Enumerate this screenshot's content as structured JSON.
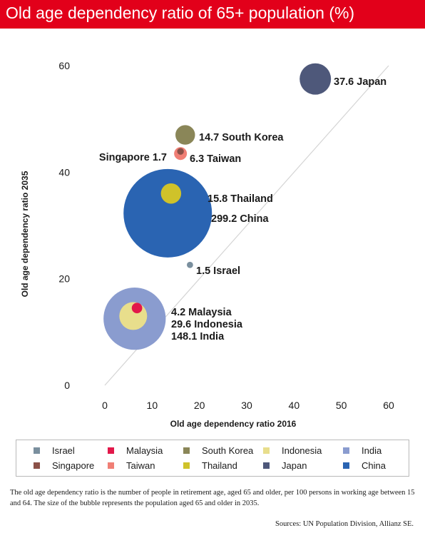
{
  "title": "Old age dependency ratio of 65+ population (%)",
  "note": "The old age dependency ratio is the number of people in retirement age, aged 65 and older, per 100 persons in working age between 15 and 64. The size of the bubble represents the population aged 65 and older in 2035.",
  "source": "Sources: UN Population Division, Allianz SE.",
  "chart_data": {
    "type": "scatter",
    "title": "Old age dependency ratio of 65+ population (%)",
    "xlabel": "Old age dependency ratio 2016",
    "ylabel": "Old age dependency ratio 2035",
    "xlim": [
      0,
      60
    ],
    "ylim": [
      0,
      60
    ],
    "xticks": [
      "0",
      "10",
      "20",
      "30",
      "40",
      "50",
      "60"
    ],
    "yticks": [
      "0",
      "20",
      "40",
      "60"
    ],
    "grid": false,
    "reference_line": "y = x",
    "legend_position": "bottom",
    "size_measure": "Population aged 65+ in 2035",
    "series": [
      {
        "name": "China",
        "x": 13.3,
        "y": 32.3,
        "size": 299.2,
        "label": "299.2 China",
        "color": "#2a64b2"
      },
      {
        "name": "India",
        "x": 6.3,
        "y": 12.5,
        "size": 148.1,
        "label": "148.1 India",
        "color": "#8a9ccf"
      },
      {
        "name": "Japan",
        "x": 44.5,
        "y": 57.5,
        "size": 37.6,
        "label": "37.6 Japan",
        "color": "#4e587a"
      },
      {
        "name": "Indonesia",
        "x": 6.0,
        "y": 13.0,
        "size": 29.6,
        "label": "29.6 Indonesia",
        "color": "#e8de8c"
      },
      {
        "name": "Thailand",
        "x": 14.0,
        "y": 36.0,
        "size": 15.8,
        "label": "15.8 Thailand",
        "color": "#cfc22a"
      },
      {
        "name": "South Korea",
        "x": 17.0,
        "y": 47.0,
        "size": 14.7,
        "label": "14.7 South Korea",
        "color": "#8a8658"
      },
      {
        "name": "Taiwan",
        "x": 16.0,
        "y": 43.5,
        "size": 6.3,
        "label": "6.3 Taiwan",
        "color": "#f07f75"
      },
      {
        "name": "Malaysia",
        "x": 6.8,
        "y": 14.5,
        "size": 4.2,
        "label": "4.2 Malaysia",
        "color": "#e2184a"
      },
      {
        "name": "Singapore",
        "x": 16.0,
        "y": 43.9,
        "size": 1.7,
        "label": "Singapore 1.7",
        "color": "#8b5148"
      },
      {
        "name": "Israel",
        "x": 18.0,
        "y": 22.6,
        "size": 1.5,
        "label": "1.5 Israel",
        "color": "#7a8f9e"
      }
    ]
  },
  "legend": [
    {
      "label": "Israel",
      "color": "#7a8f9e"
    },
    {
      "label": "Malaysia",
      "color": "#e2184a"
    },
    {
      "label": "South Korea",
      "color": "#8a8658"
    },
    {
      "label": "Indonesia",
      "color": "#e8de8c"
    },
    {
      "label": "India",
      "color": "#8a9ccf"
    },
    {
      "label": "Singapore",
      "color": "#8b5148"
    },
    {
      "label": "Taiwan",
      "color": "#f07f75"
    },
    {
      "label": "Thailand",
      "color": "#cfc22a"
    },
    {
      "label": "Japan",
      "color": "#4e587a"
    },
    {
      "label": "China",
      "color": "#2a64b2"
    }
  ]
}
